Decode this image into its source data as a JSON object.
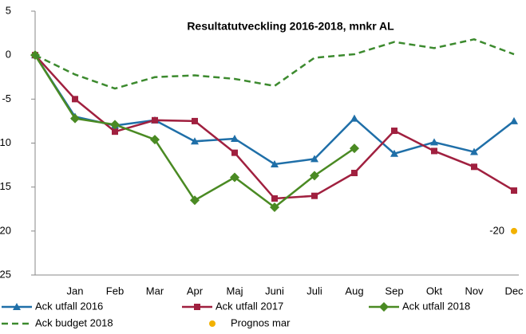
{
  "chart_data": {
    "type": "line",
    "title": "Resultatutveckling 2016-2018, mnkr AL",
    "categories": [
      null,
      "Jan",
      "Feb",
      "Mar",
      "Apr",
      "Maj",
      "Juni",
      "Juli",
      "Aug",
      "Sep",
      "Okt",
      "Nov",
      "Dec"
    ],
    "series": [
      {
        "name": "Ack utfall 2016",
        "color": "#1f6fa8",
        "marker": "triangle",
        "values": [
          0,
          -7.0,
          -8.0,
          -7.4,
          -9.8,
          -9.5,
          -12.4,
          -11.8,
          -7.2,
          -11.2,
          -9.9,
          -11.0,
          -7.5
        ]
      },
      {
        "name": "Ack utfall 2017",
        "color": "#a0203f",
        "marker": "square",
        "values": [
          0,
          -5.0,
          -8.7,
          -7.4,
          -7.5,
          -11.1,
          -16.3,
          -16.0,
          -13.4,
          -8.6,
          -10.9,
          -12.7,
          -15.4
        ]
      },
      {
        "name": "Ack utfall 2018",
        "color": "#4a8a23",
        "marker": "diamond",
        "values": [
          0,
          -7.2,
          -7.9,
          -9.6,
          -16.5,
          -13.9,
          -17.3,
          -13.7,
          -10.6,
          null,
          null,
          null,
          null
        ]
      },
      {
        "name": "Ack budget 2018",
        "color": "#3c8a2e",
        "dashed": true,
        "values": [
          0,
          -2.2,
          -3.8,
          -2.5,
          -2.3,
          -2.7,
          -3.5,
          -0.3,
          0.1,
          1.5,
          0.8,
          1.8,
          0.1
        ]
      },
      {
        "name": "Prognos mar",
        "color": "#f2b100",
        "marker": "circle",
        "line": false,
        "data_labels": true,
        "values": [
          null,
          null,
          null,
          null,
          null,
          null,
          null,
          null,
          null,
          null,
          null,
          null,
          -20
        ]
      }
    ],
    "ylim": [
      -25,
      5
    ],
    "yticks": [
      -25,
      -20,
      -15,
      -10,
      -5,
      0,
      5
    ]
  }
}
